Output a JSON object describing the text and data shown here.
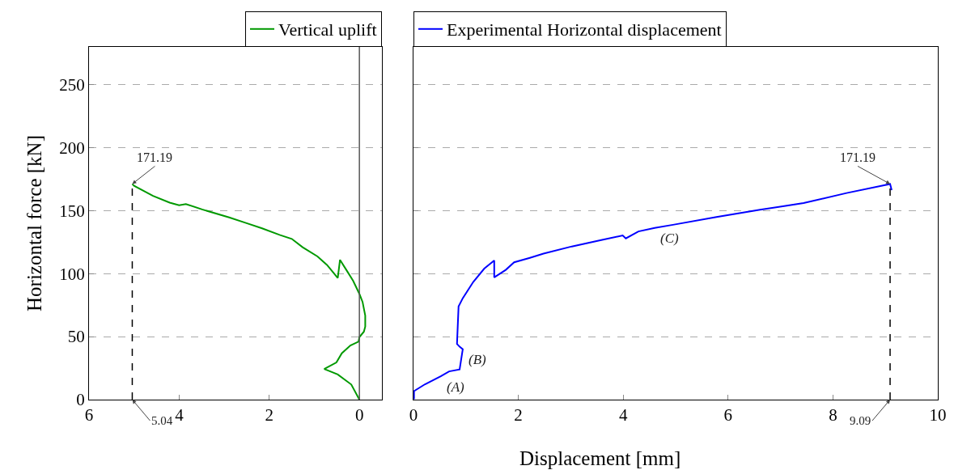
{
  "chart_data": [
    {
      "type": "line",
      "ylabel": "Horizontal force [kN]",
      "xlim": [
        6,
        -0.5
      ],
      "xticks": [
        6,
        4,
        2,
        0
      ],
      "ylim": [
        0,
        280
      ],
      "yticks": [
        0,
        50,
        100,
        150,
        200,
        250
      ],
      "grid": "y",
      "legend": "top",
      "line_style": "solid",
      "marker": "none",
      "series": [
        {
          "name": "Vertical uplift",
          "color": "#009900",
          "x": [
            0,
            0.18,
            0.48,
            0.78,
            0.51,
            0.39,
            0.2,
            0.02,
            0,
            -0.1,
            -0.13,
            -0.13,
            -0.07,
            0,
            0.14,
            0.29,
            0.43,
            0.48,
            0.72,
            0.93,
            1.26,
            1.5,
            1.77,
            2.16,
            2.53,
            2.89,
            3.49,
            3.85,
            4.0,
            4.21,
            4.58,
            5.0,
            5.04
          ],
          "values": [
            0,
            12,
            20,
            24.3,
            29.5,
            36.8,
            43,
            46,
            49.6,
            54,
            58,
            66.7,
            77.6,
            84,
            94.4,
            103,
            111,
            96.6,
            107,
            113.7,
            121,
            127.6,
            130.8,
            136,
            140.4,
            144.7,
            151,
            155.3,
            154.3,
            156.4,
            161.7,
            169.7,
            171.2
          ]
        }
      ],
      "ref_lines": [
        {
          "axis": "x",
          "value": 0,
          "color": "#555555",
          "line_style": "solid"
        },
        {
          "axis": "x",
          "value": 5.04,
          "label": "5.04",
          "color": "#000000",
          "line_style": "dashed"
        }
      ],
      "annotations": [
        {
          "text": "171.19",
          "x": 5.04,
          "y": 171.19
        }
      ]
    },
    {
      "type": "line",
      "xlim": [
        0,
        10
      ],
      "xticks": [
        0,
        2,
        4,
        6,
        8,
        10
      ],
      "ylim": [
        0,
        280
      ],
      "yticks": [
        0,
        50,
        100,
        150,
        200,
        250
      ],
      "tick_labels": "x",
      "grid": "y",
      "legend": "top",
      "line_style": "solid",
      "marker": "none",
      "xlabel": "Displacement [mm]",
      "series": [
        {
          "name": "Experimental Horizontal displacement",
          "color": "#0000ff",
          "x": [
            0.01,
            0.01,
            0.22,
            0.52,
            0.68,
            0.88,
            0.94,
            0.88,
            0.83,
            0.86,
            0.94,
            1.14,
            1.35,
            1.54,
            1.54,
            1.76,
            1.92,
            2.22,
            2.48,
            3.02,
            3.58,
            3.99,
            4.05,
            4.29,
            4.6,
            4.95,
            5.78,
            6.61,
            7.44,
            8.26,
            9.09,
            9.12
          ],
          "values": [
            0.4,
            6.8,
            12.2,
            18.6,
            22.4,
            24,
            40,
            42,
            44.2,
            74,
            80.5,
            93.4,
            104,
            110.4,
            97,
            103,
            109,
            112.6,
            115.9,
            121.6,
            126.7,
            130.3,
            128,
            133.5,
            136.3,
            138.8,
            145,
            150.7,
            156,
            164,
            171.2,
            166.3
          ]
        }
      ],
      "ref_lines": [
        {
          "axis": "x",
          "value": 9.09,
          "label": "9.09",
          "color": "#000000",
          "line_style": "dashed"
        }
      ],
      "annotations": [
        {
          "text": "171.19",
          "x": 9.09,
          "y": 171.19
        },
        {
          "text": "(A)",
          "x": 0.52,
          "y": 18.6
        },
        {
          "text": "(B)",
          "x": 0.94,
          "y": 40
        },
        {
          "text": "(C)",
          "x": 4.6,
          "y": 136.3
        }
      ]
    }
  ]
}
